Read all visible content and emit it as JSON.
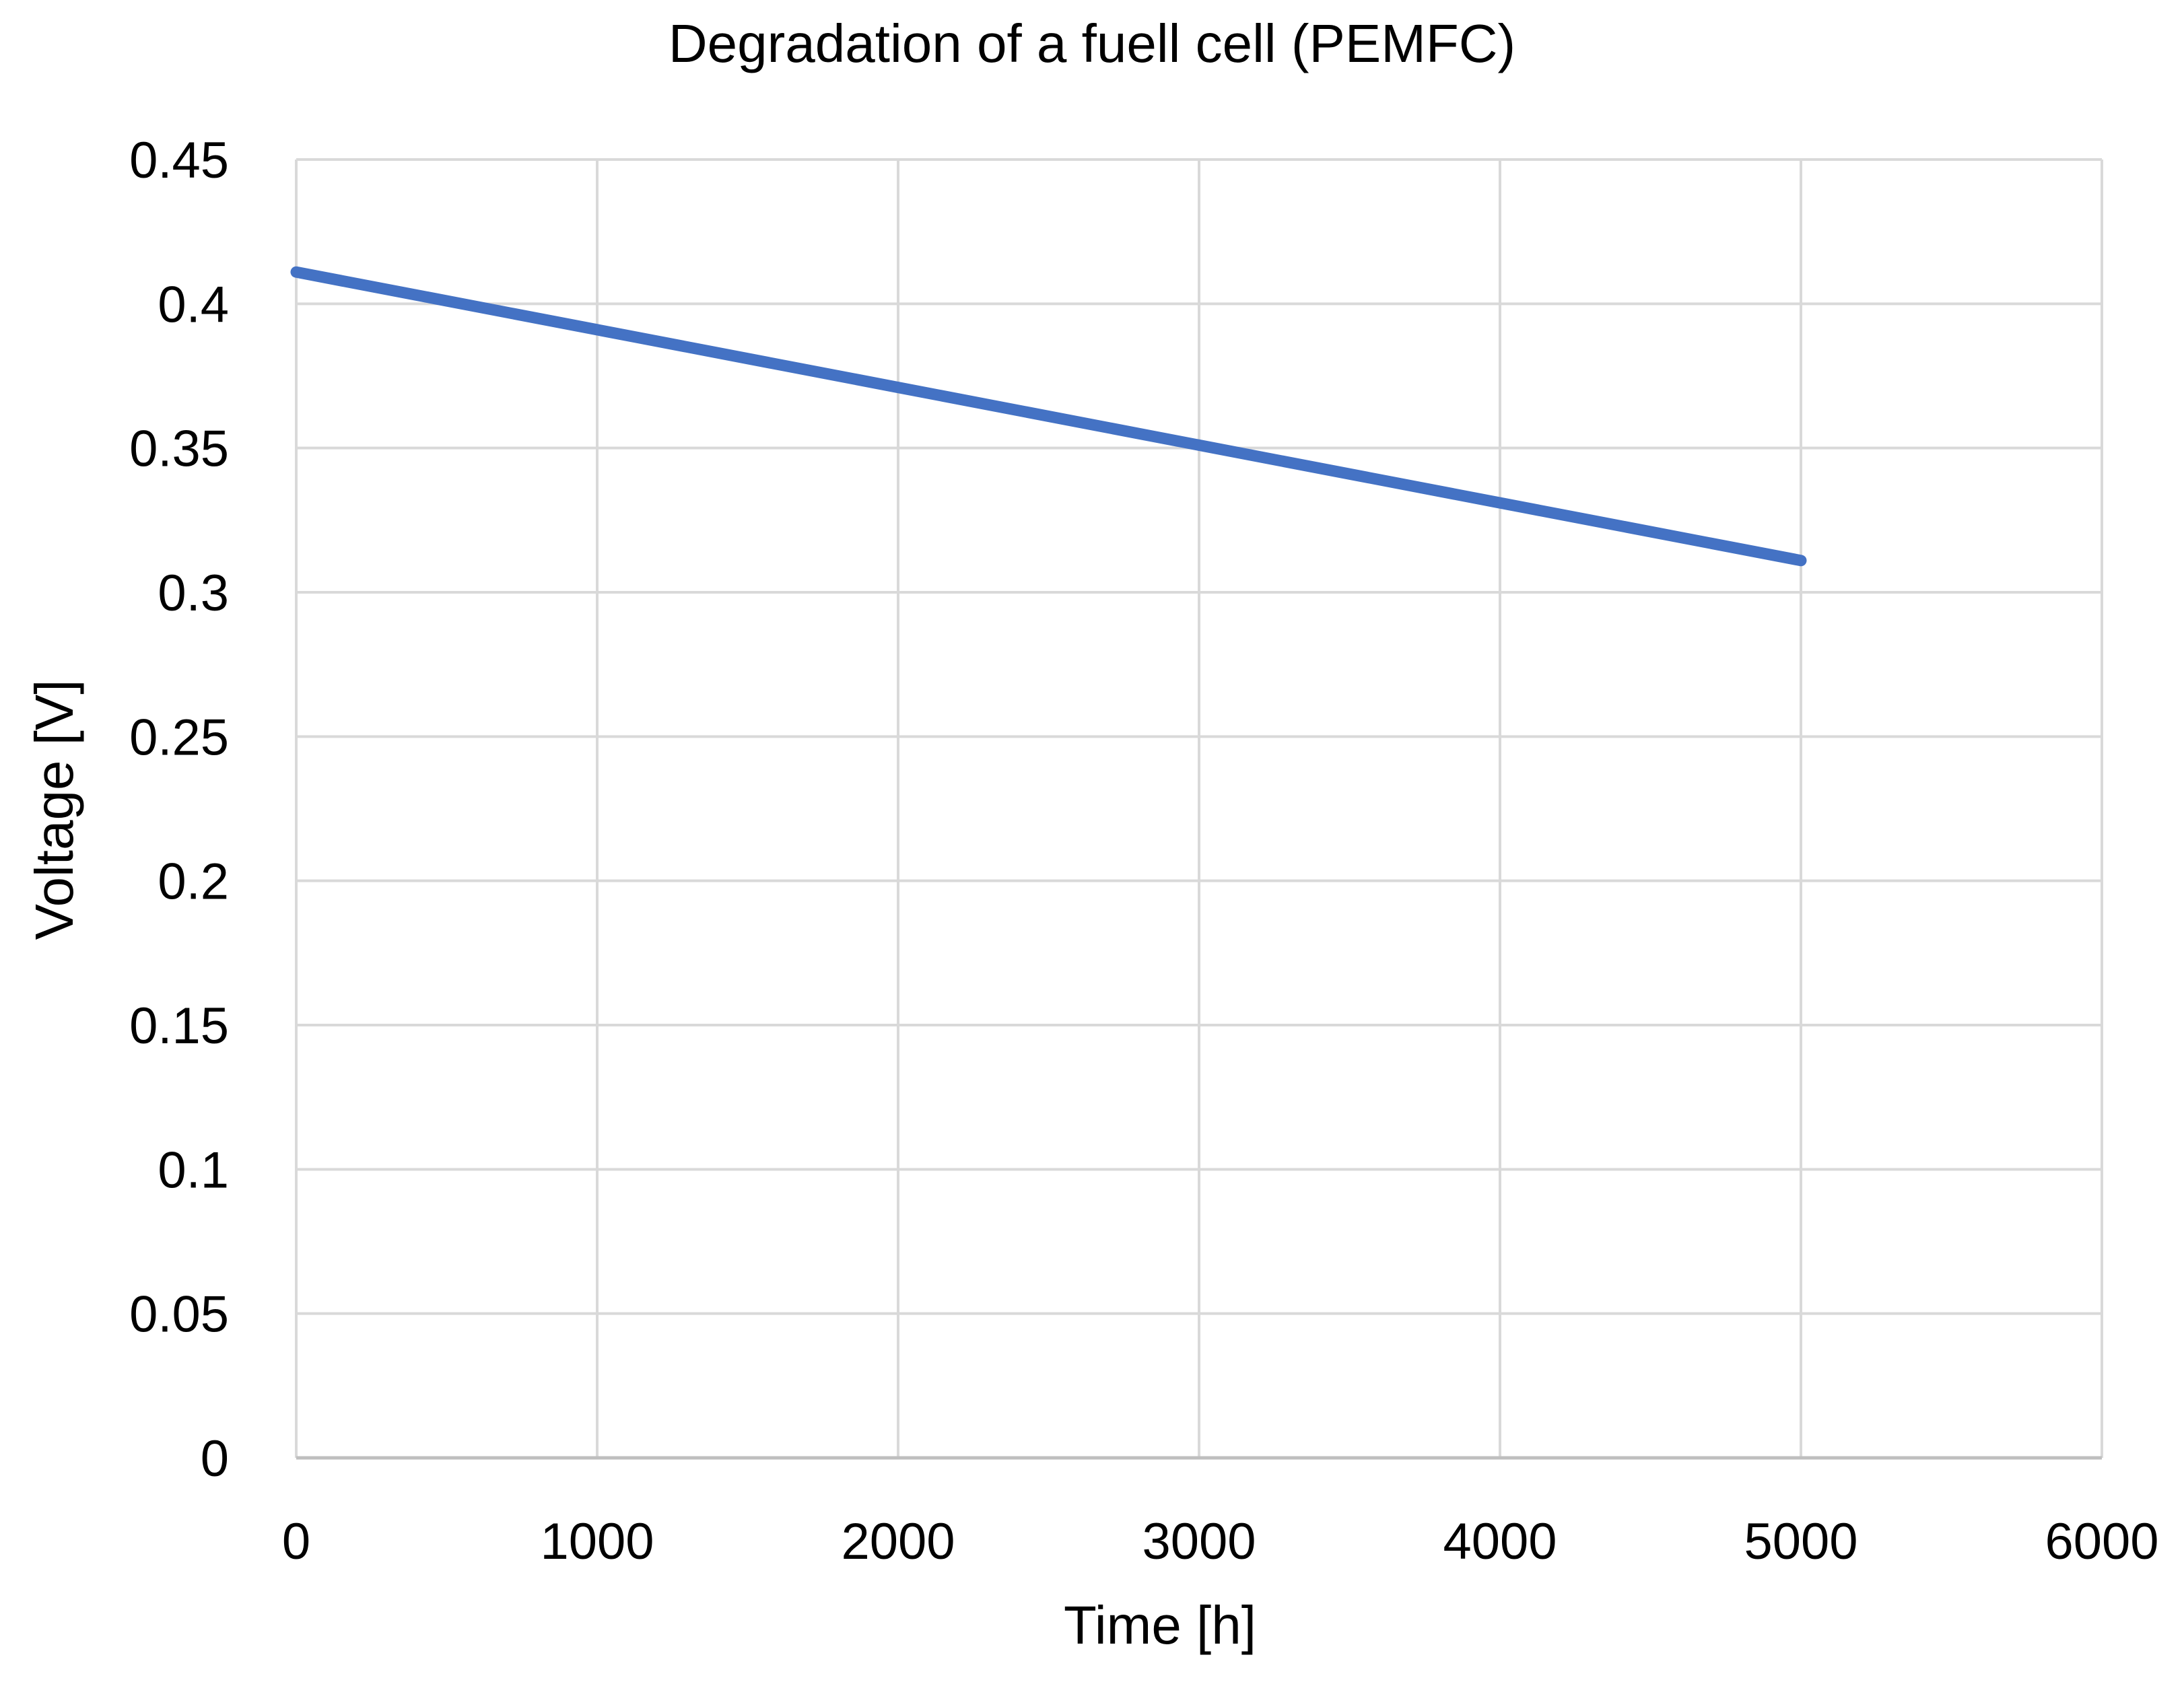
{
  "chart_data": {
    "type": "line",
    "title": "Degradation of a fuell cell (PEMFC)",
    "xlabel": "Time [h]",
    "ylabel": "Voltage [V]",
    "xlim": [
      0,
      6000
    ],
    "ylim": [
      0,
      0.45
    ],
    "x_ticks": [
      "0",
      "1000",
      "2000",
      "3000",
      "4000",
      "5000",
      "6000"
    ],
    "y_ticks": [
      "0",
      "0.05",
      "0.1",
      "0.15",
      "0.2",
      "0.25",
      "0.3",
      "0.35",
      "0.4",
      "0.45"
    ],
    "grid": true,
    "legend": "none",
    "series": [
      {
        "color": "#4472C4",
        "points": [
          {
            "x": 0,
            "y": 0.411
          },
          {
            "x": 1000,
            "y": 0.391
          },
          {
            "x": 2000,
            "y": 0.371
          },
          {
            "x": 3000,
            "y": 0.351
          },
          {
            "x": 4000,
            "y": 0.331
          },
          {
            "x": 5000,
            "y": 0.311
          }
        ]
      }
    ],
    "colors": {
      "grid": "#D9D9D9",
      "axis": "#BFBFBF"
    }
  }
}
